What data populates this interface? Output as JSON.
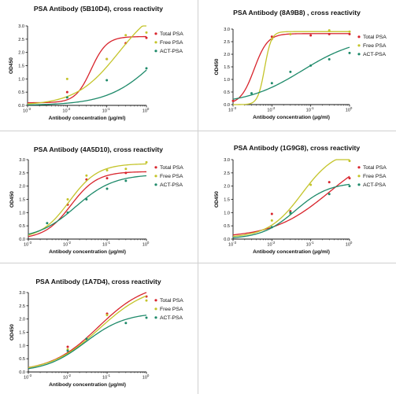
{
  "chart_data": [
    {
      "type": "scatter",
      "title": "PSA Antibody (5B10D4), cross reactivity",
      "xlabel": "Antibody concentration (μg/ml)",
      "ylabel": "OD450",
      "xscale": "log",
      "xlim": [
        0.001,
        1
      ],
      "ylim": [
        0,
        3.0
      ],
      "yticks": [
        "0.0",
        "0.5",
        "1.0",
        "1.5",
        "2.0",
        "2.5",
        "3.0"
      ],
      "xticks": [
        "10",
        "10",
        "10",
        "10"
      ],
      "xtick_exponents": [
        "-3",
        "-2",
        "-1",
        "0"
      ],
      "legend": "right",
      "series": [
        {
          "name": "Total PSA",
          "color": "#d8242c",
          "x": [
            0.01,
            0.1,
            0.3,
            1
          ],
          "y": [
            0.5,
            1.75,
            2.35,
            2.55
          ],
          "fit": [
            0.1,
            2.6,
            0.04,
            2.2
          ]
        },
        {
          "name": "Free PSA",
          "color": "#c4c42a",
          "x": [
            0.01,
            0.1,
            0.3,
            1
          ],
          "y": [
            1.0,
            1.75,
            2.65,
            2.75
          ],
          "fit": [
            0.0,
            4.0,
            0.2,
            0.8
          ]
        },
        {
          "name": "ACT-PSA",
          "color": "#1e8a6a",
          "x": [
            0.01,
            0.1,
            1
          ],
          "y": [
            0.3,
            0.95,
            1.4
          ],
          "fit": [
            0.0,
            3.5,
            2.0,
            0.7
          ]
        }
      ]
    },
    {
      "type": "scatter",
      "title": "PSA Antibody (8A9B8) , cross reactivity",
      "xlabel": "Antibody concentration (μg/ml)",
      "ylabel": "OD450",
      "xscale": "log",
      "xlim": [
        0.001,
        1
      ],
      "ylim": [
        0,
        3.0
      ],
      "yticks": [
        "0.0",
        "0.5",
        "1.0",
        "1.5",
        "2.0",
        "2.5",
        "3.0"
      ],
      "xticks": [
        "10",
        "10",
        "10",
        "10"
      ],
      "xtick_exponents": [
        "-3",
        "-2",
        "-1",
        "0"
      ],
      "legend": "right",
      "series": [
        {
          "name": "Total PSA",
          "color": "#d8242c",
          "x": [
            0.001,
            0.01,
            0.03,
            0.1,
            0.3,
            1
          ],
          "y": [
            0.15,
            2.7,
            2.8,
            2.75,
            2.8,
            2.8
          ],
          "fit": [
            0.0,
            2.82,
            0.0035,
            2.5
          ]
        },
        {
          "name": "Free PSA",
          "color": "#c4c42a",
          "x": [
            0.01,
            0.03,
            0.3,
            1
          ],
          "y": [
            2.6,
            2.8,
            2.95,
            2.9
          ],
          "fit": [
            0.0,
            2.9,
            0.0065,
            5.0
          ]
        },
        {
          "name": "ACT-PSA",
          "color": "#1e8a6a",
          "x": [
            0.003,
            0.01,
            0.03,
            0.1,
            0.3,
            1
          ],
          "y": [
            0.45,
            0.85,
            1.3,
            1.55,
            1.8,
            2.05
          ],
          "fit": [
            0.0,
            2.7,
            0.06,
            0.6
          ]
        }
      ]
    },
    {
      "type": "scatter",
      "title": "PSA Antibody (4A5D10), cross reactivity",
      "xlabel": "Antibody concentration (μg/ml)",
      "ylabel": "OD450",
      "xscale": "log",
      "xlim": [
        0.001,
        1
      ],
      "ylim": [
        0,
        3.0
      ],
      "yticks": [
        "0.0",
        "0.5",
        "1.0",
        "1.5",
        "2.0",
        "2.5",
        "3.0"
      ],
      "xticks": [
        "10",
        "10",
        "10",
        "10"
      ],
      "xtick_exponents": [
        "-3",
        "-2",
        "-1",
        "0"
      ],
      "legend": "right",
      "series": [
        {
          "name": "Total PSA",
          "color": "#d8242c",
          "x": [
            0.01,
            0.03,
            0.1,
            0.3
          ],
          "y": [
            1.3,
            2.25,
            2.3,
            2.5
          ],
          "fit": [
            0.0,
            2.55,
            0.012,
            1.3
          ]
        },
        {
          "name": "Free PSA",
          "color": "#c4c42a",
          "x": [
            0.01,
            0.03,
            0.1,
            0.3,
            1
          ],
          "y": [
            1.5,
            2.4,
            2.6,
            2.65,
            2.9
          ],
          "fit": [
            0.0,
            2.85,
            0.011,
            1.2
          ]
        },
        {
          "name": "ACT-PSA",
          "color": "#1e8a6a",
          "x": [
            0.003,
            0.01,
            0.03,
            0.1,
            0.3
          ],
          "y": [
            0.6,
            1.0,
            1.5,
            1.9,
            2.2
          ],
          "fit": [
            0.0,
            2.45,
            0.016,
            0.9
          ]
        }
      ]
    },
    {
      "type": "scatter",
      "title": "PSA Antibody (1G9G8), cross reactivity",
      "xlabel": "Antibody concentration (μg/ml)",
      "ylabel": "OD450",
      "xscale": "log",
      "xlim": [
        0.001,
        1
      ],
      "ylim": [
        0,
        3.0
      ],
      "yticks": [
        "0.0",
        "0.5",
        "1.0",
        "1.5",
        "2.0",
        "2.5",
        "3.0"
      ],
      "xticks": [
        "10",
        "10",
        "10",
        "10"
      ],
      "xtick_exponents": [
        "-3",
        "-2",
        "-1",
        "0"
      ],
      "legend": "right",
      "series": [
        {
          "name": "Total PSA",
          "color": "#d8242c",
          "x": [
            0.01,
            0.03,
            0.3,
            1
          ],
          "y": [
            0.95,
            1.05,
            2.15,
            2.3
          ],
          "fit": [
            0.05,
            3.5,
            0.3,
            0.6
          ]
        },
        {
          "name": "Free PSA",
          "color": "#c4c42a",
          "x": [
            0.01,
            0.03,
            0.1,
            1
          ],
          "y": [
            0.7,
            0.95,
            2.05,
            2.95
          ],
          "fit": [
            0.05,
            3.4,
            0.06,
            1.0
          ]
        },
        {
          "name": "ACT-PSA",
          "color": "#1e8a6a",
          "x": [
            0.01,
            0.03,
            0.3,
            1
          ],
          "y": [
            0.45,
            1.0,
            1.7,
            2.0
          ],
          "fit": [
            0.0,
            2.15,
            0.04,
            1.0
          ]
        }
      ]
    },
    {
      "type": "scatter",
      "title": "PSA Antibody (1A7D4), cross reactivity",
      "xlabel": "Antibody concentration (μg/ml)",
      "ylabel": "OD450",
      "xscale": "log",
      "xlim": [
        0.001,
        1
      ],
      "ylim": [
        0,
        3.0
      ],
      "yticks": [
        "0.0",
        "0.5",
        "1.0",
        "1.5",
        "2.0",
        "2.5",
        "3.0"
      ],
      "xticks": [
        "10",
        "10",
        "10",
        "10"
      ],
      "xtick_exponents": [
        "-3",
        "-2",
        "-1",
        "0"
      ],
      "legend": "right",
      "series": [
        {
          "name": "Total PSA",
          "color": "#d8242c",
          "x": [
            0.01,
            0.1,
            1
          ],
          "y": [
            0.95,
            2.2,
            2.85
          ],
          "fit": [
            0.0,
            3.4,
            0.06,
            0.72
          ]
        },
        {
          "name": "Free PSA",
          "color": "#c4c42a",
          "x": [
            0.01,
            0.1,
            1
          ],
          "y": [
            0.85,
            2.15,
            2.7
          ],
          "fit": [
            0.0,
            3.3,
            0.065,
            0.7
          ]
        },
        {
          "name": "ACT-PSA",
          "color": "#1e8a6a",
          "x": [
            0.01,
            0.03,
            0.3,
            1
          ],
          "y": [
            0.8,
            1.25,
            1.85,
            2.05
          ],
          "fit": [
            0.0,
            2.25,
            0.028,
            0.85
          ]
        }
      ]
    }
  ]
}
